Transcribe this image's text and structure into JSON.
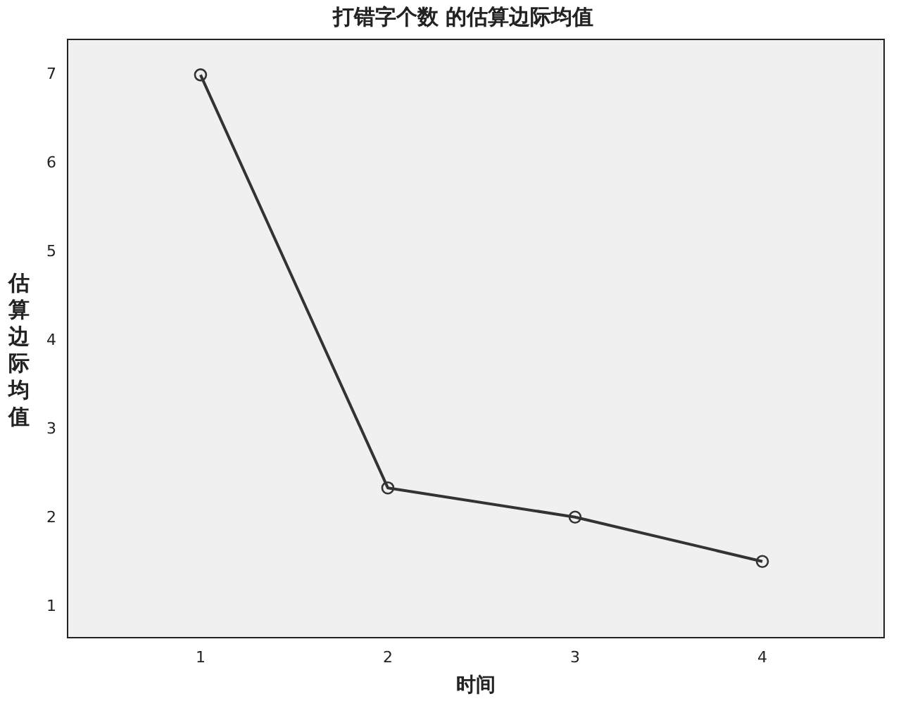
{
  "chart_data": {
    "type": "line",
    "title": "打错字个数 的估算边际均值",
    "xlabel": "时间",
    "ylabel": "估算边际均值",
    "x": [
      1,
      2,
      3,
      4
    ],
    "xlim": [
      0.29,
      4.65
    ],
    "xticks": [
      1,
      2,
      3,
      4
    ],
    "ylim": [
      0.65,
      7.4
    ],
    "yticks": [
      1,
      2,
      3,
      4,
      5,
      6,
      7
    ],
    "series": [
      {
        "color": "#333333",
        "values": [
          7,
          2.34,
          2.01,
          1.51
        ]
      }
    ],
    "marker": "circle",
    "line_style": "solid",
    "grid": false,
    "legend": false
  }
}
